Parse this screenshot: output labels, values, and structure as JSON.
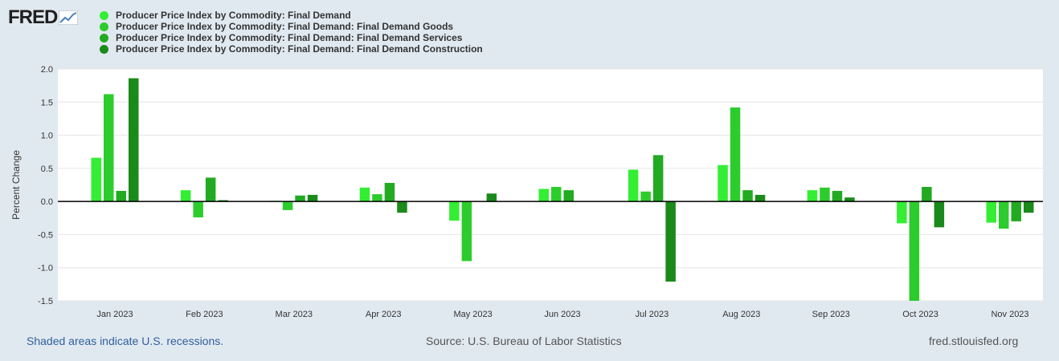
{
  "logo": {
    "text": "FRED"
  },
  "footer": {
    "recession_note": "Shaded areas indicate U.S. recessions.",
    "source": "Source: U.S. Bureau of Labor Statistics",
    "site": "fred.stlouisfed.org"
  },
  "colors": {
    "series": [
      "#33ee33",
      "#2dcc2d",
      "#22aa22",
      "#1a8a1a"
    ],
    "plot_bg": "#ffffff",
    "page_bg": "#e1e9f0"
  },
  "chart_data": {
    "type": "bar",
    "title": "",
    "xlabel": "",
    "ylabel": "Percent Change",
    "ylim": [
      -1.5,
      2.0
    ],
    "yticks": [
      "2.0",
      "1.5",
      "1.0",
      "0.5",
      "0.0",
      "-0.5",
      "-1.0",
      "-1.5"
    ],
    "ytick_values": [
      2.0,
      1.5,
      1.0,
      0.5,
      0.0,
      -0.5,
      -1.0,
      -1.5
    ],
    "categories": [
      "Jan 2023",
      "Feb 2023",
      "Mar 2023",
      "Apr 2023",
      "May 2023",
      "Jun 2023",
      "Jul 2023",
      "Aug 2023",
      "Sep 2023",
      "Oct 2023",
      "Nov 2023"
    ],
    "series": [
      {
        "name": "Producer Price Index by Commodity: Final Demand",
        "values": [
          0.66,
          0.17,
          0.01,
          0.21,
          -0.29,
          0.19,
          0.48,
          0.55,
          0.17,
          -0.33,
          -0.32
        ]
      },
      {
        "name": "Producer Price Index by Commodity: Final Demand: Final Demand Goods",
        "values": [
          1.62,
          -0.24,
          -0.13,
          0.11,
          -0.9,
          0.22,
          0.15,
          1.42,
          0.21,
          -1.52,
          -0.41
        ]
      },
      {
        "name": "Producer Price Index by Commodity: Final Demand: Final Demand Services",
        "values": [
          0.16,
          0.36,
          0.09,
          0.28,
          null,
          0.17,
          0.7,
          0.17,
          0.16,
          0.22,
          -0.3
        ]
      },
      {
        "name": "Producer Price Index by Commodity: Final Demand: Final Demand Construction",
        "values": [
          1.86,
          0.02,
          0.1,
          -0.17,
          0.12,
          null,
          -1.21,
          0.1,
          0.06,
          -0.39,
          -0.17
        ]
      }
    ]
  }
}
